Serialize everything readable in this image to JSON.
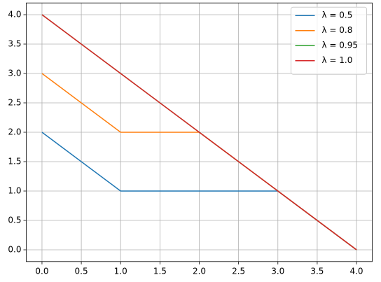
{
  "chart_data": {
    "type": "line",
    "x": [
      0,
      1,
      2,
      3,
      4
    ],
    "series": [
      {
        "name": "λ = 0.5",
        "color": "#1f77b4",
        "values": [
          2,
          1,
          1,
          1,
          0
        ]
      },
      {
        "name": "λ = 0.8",
        "color": "#ff7f0e",
        "values": [
          3,
          2,
          2,
          1,
          0
        ]
      },
      {
        "name": "λ = 0.95",
        "color": "#2ca02c",
        "values": [
          4,
          3,
          2,
          1,
          0
        ]
      },
      {
        "name": "λ = 1.0",
        "color": "#d62728",
        "values": [
          4,
          3,
          2,
          1,
          0
        ]
      }
    ],
    "xlim": [
      -0.2,
      4.2
    ],
    "ylim": [
      -0.2,
      4.2
    ],
    "xticks": [
      {
        "value": 0,
        "label": "0.0"
      },
      0.5,
      {
        "value": 1,
        "label": "1.0"
      },
      1.5,
      {
        "value": 2,
        "label": "2.0"
      },
      2.5,
      {
        "value": 3,
        "label": "3.0"
      },
      3.5,
      {
        "value": 4,
        "label": "4.0"
      }
    ],
    "yticks": [
      {
        "value": 0,
        "label": "0.0"
      },
      0.5,
      {
        "value": 1,
        "label": "1.0"
      },
      1.5,
      {
        "value": 2,
        "label": "2.0"
      },
      2.5,
      {
        "value": 3,
        "label": "3.0"
      },
      3.5,
      {
        "value": 4,
        "label": "4.0"
      }
    ],
    "grid": true,
    "legend": "upper right"
  }
}
